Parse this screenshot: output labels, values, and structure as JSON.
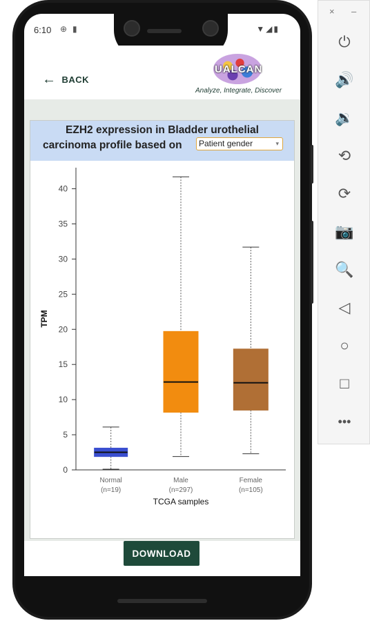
{
  "status_bar": {
    "time": "6:10",
    "icons": [
      "settings-icon",
      "sim-icon",
      "wifi-icon",
      "signal-icon",
      "battery-icon"
    ]
  },
  "app_bar": {
    "back_label": "BACK",
    "logo_text": "UALCAN",
    "tagline": "Analyze, Integrate, Discover"
  },
  "card": {
    "title_line1": "EZH2 expression in Bladder urothelial",
    "title_line2": "carcinoma profile based on",
    "select_value": "Patient gender"
  },
  "chart_data": {
    "type": "boxplot",
    "ylabel": "TPM",
    "xlabel": "TCGA samples",
    "ylim": [
      0,
      43
    ],
    "yticks": [
      0,
      5,
      10,
      15,
      20,
      25,
      30,
      35,
      40
    ],
    "categories": [
      {
        "name": "Normal",
        "n": "(n=19)",
        "color": "#3a4fd0",
        "min": 0.1,
        "q1": 1.9,
        "median": 2.5,
        "q3": 3.1,
        "max": 6.1
      },
      {
        "name": "Male",
        "n": "(n=297)",
        "color": "#f28c0f",
        "min": 1.9,
        "q1": 8.2,
        "median": 12.5,
        "q3": 19.7,
        "max": 41.7
      },
      {
        "name": "Female",
        "n": "(n=105)",
        "color": "#b06f35",
        "min": 2.3,
        "q1": 8.5,
        "median": 12.4,
        "q3": 17.2,
        "max": 31.7
      }
    ]
  },
  "footer": {
    "download_label": "DOWNLOAD"
  },
  "emulator_toolbar": {
    "close": "×",
    "minimize": "–",
    "buttons": [
      "power-icon",
      "volume-up-icon",
      "volume-down-icon",
      "rotate-left-icon",
      "rotate-right-icon",
      "camera-icon",
      "zoom-icon",
      "back-icon",
      "home-icon",
      "overview-icon",
      "more-icon"
    ]
  }
}
